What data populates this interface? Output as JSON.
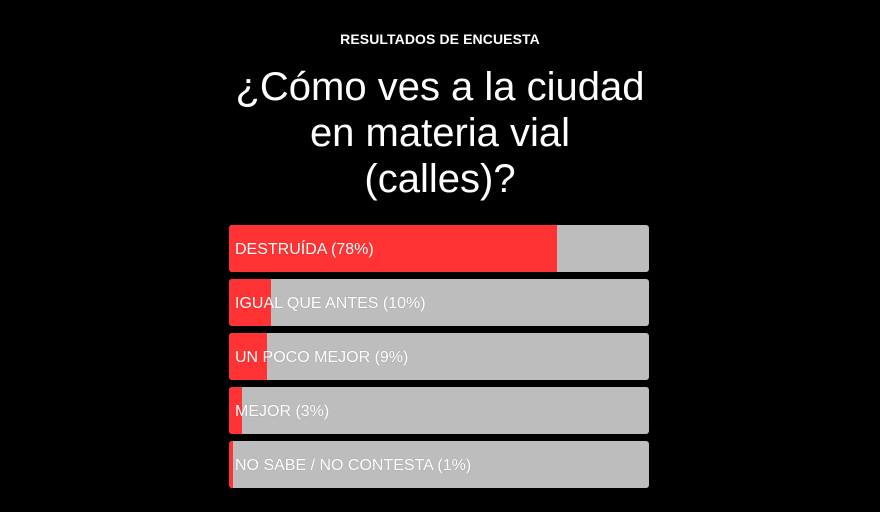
{
  "poll": {
    "kicker": "RESULTADOS DE ENCUESTA",
    "question_lines": [
      "¿Cómo ves a la ciudad",
      "en materia vial",
      "(calles)?"
    ],
    "colors": {
      "background": "#000000",
      "fill": "#ff3333",
      "track": "#bdbdbe",
      "text": "#ffffff"
    },
    "options": [
      {
        "label": "DESTRUÍDA (78%)",
        "percent": 78
      },
      {
        "label": "IGUAL QUE ANTES (10%)",
        "percent": 10
      },
      {
        "label": "UN POCO MEJOR (9%)",
        "percent": 9
      },
      {
        "label": "MEJOR (3%)",
        "percent": 3
      },
      {
        "label": "NO SABE / NO CONTESTA (1%)",
        "percent": 1
      }
    ]
  }
}
